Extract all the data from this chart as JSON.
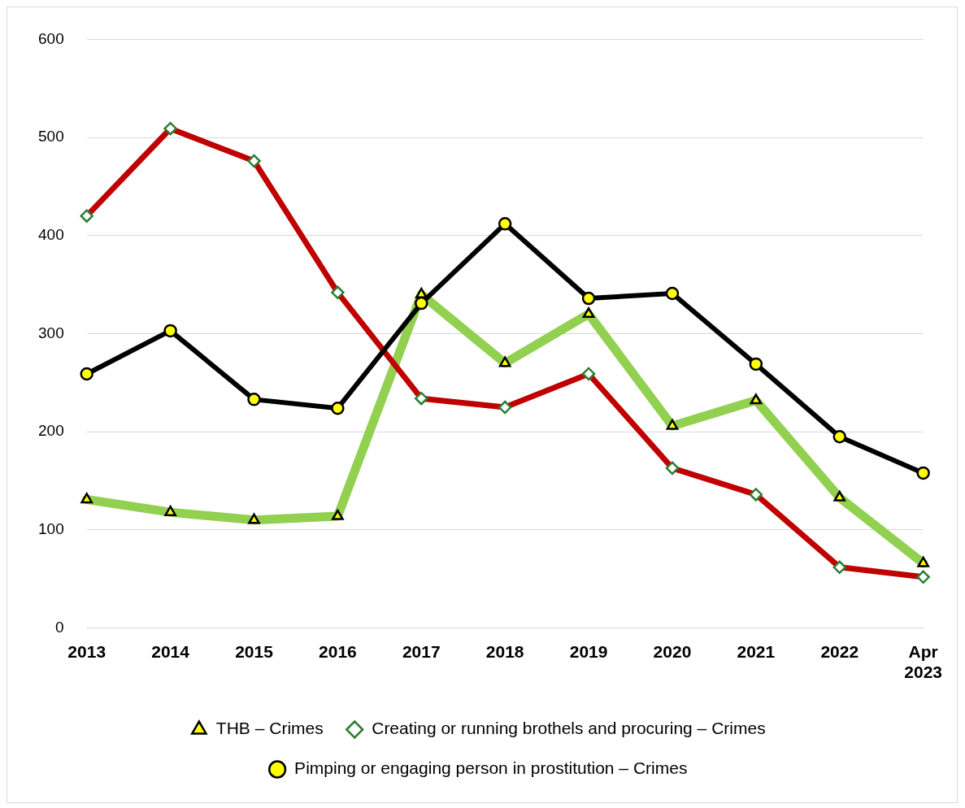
{
  "chart_data": {
    "type": "line",
    "categories": [
      "2013",
      "2014",
      "2015",
      "2016",
      "2017",
      "2018",
      "2019",
      "2020",
      "2021",
      "2022",
      "Apr 2023"
    ],
    "series": [
      {
        "name": "THB – Crimes",
        "color": "#92d050",
        "marker": "triangle",
        "values": [
          131,
          118,
          110,
          114,
          340,
          270,
          320,
          206,
          232,
          133,
          66
        ]
      },
      {
        "name": "Creating or running brothels and procuring – Crimes",
        "color": "#c00000",
        "marker": "diamond",
        "values": [
          420,
          509,
          476,
          342,
          234,
          225,
          259,
          163,
          136,
          62,
          52
        ]
      },
      {
        "name": "Pimping or engaging person in prostitution – Crimes",
        "color": "#000000",
        "marker": "circle",
        "values": [
          259,
          303,
          233,
          224,
          331,
          412,
          336,
          341,
          269,
          195,
          158
        ]
      }
    ],
    "ylim": [
      0,
      600
    ],
    "yticks": [
      0,
      100,
      200,
      300,
      400,
      500,
      600
    ],
    "grid": "y",
    "legend": "bottom",
    "line_style": "solid"
  }
}
